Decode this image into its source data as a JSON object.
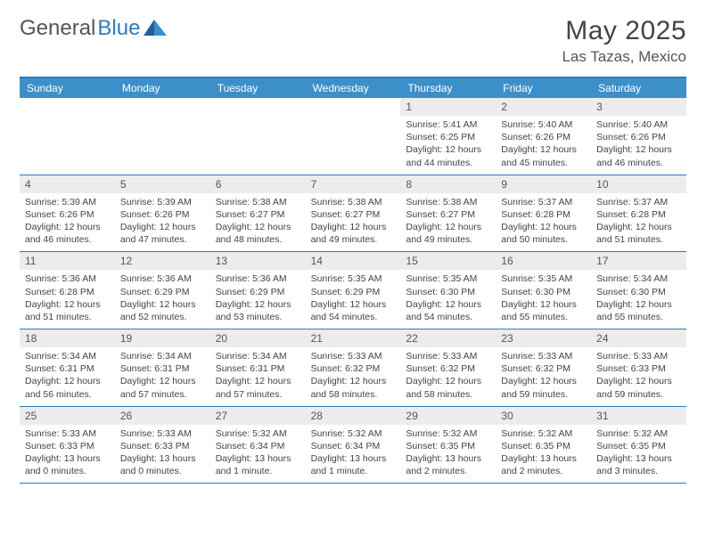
{
  "brand": {
    "part1": "General",
    "part2": "Blue"
  },
  "title": {
    "month": "May 2025",
    "location": "Las Tazas, Mexico"
  },
  "colors": {
    "header_bg": "#3d8fc9",
    "border": "#2b7bbf",
    "daynum_bg": "#ececec",
    "text": "#444444"
  },
  "day_labels": [
    "Sunday",
    "Monday",
    "Tuesday",
    "Wednesday",
    "Thursday",
    "Friday",
    "Saturday"
  ],
  "weeks": [
    [
      {
        "empty": true
      },
      {
        "empty": true
      },
      {
        "empty": true
      },
      {
        "empty": true
      },
      {
        "num": "1",
        "sunrise": "5:41 AM",
        "sunset": "6:25 PM",
        "daylight": "12 hours and 44 minutes."
      },
      {
        "num": "2",
        "sunrise": "5:40 AM",
        "sunset": "6:26 PM",
        "daylight": "12 hours and 45 minutes."
      },
      {
        "num": "3",
        "sunrise": "5:40 AM",
        "sunset": "6:26 PM",
        "daylight": "12 hours and 46 minutes."
      }
    ],
    [
      {
        "num": "4",
        "sunrise": "5:39 AM",
        "sunset": "6:26 PM",
        "daylight": "12 hours and 46 minutes."
      },
      {
        "num": "5",
        "sunrise": "5:39 AM",
        "sunset": "6:26 PM",
        "daylight": "12 hours and 47 minutes."
      },
      {
        "num": "6",
        "sunrise": "5:38 AM",
        "sunset": "6:27 PM",
        "daylight": "12 hours and 48 minutes."
      },
      {
        "num": "7",
        "sunrise": "5:38 AM",
        "sunset": "6:27 PM",
        "daylight": "12 hours and 49 minutes."
      },
      {
        "num": "8",
        "sunrise": "5:38 AM",
        "sunset": "6:27 PM",
        "daylight": "12 hours and 49 minutes."
      },
      {
        "num": "9",
        "sunrise": "5:37 AM",
        "sunset": "6:28 PM",
        "daylight": "12 hours and 50 minutes."
      },
      {
        "num": "10",
        "sunrise": "5:37 AM",
        "sunset": "6:28 PM",
        "daylight": "12 hours and 51 minutes."
      }
    ],
    [
      {
        "num": "11",
        "sunrise": "5:36 AM",
        "sunset": "6:28 PM",
        "daylight": "12 hours and 51 minutes."
      },
      {
        "num": "12",
        "sunrise": "5:36 AM",
        "sunset": "6:29 PM",
        "daylight": "12 hours and 52 minutes."
      },
      {
        "num": "13",
        "sunrise": "5:36 AM",
        "sunset": "6:29 PM",
        "daylight": "12 hours and 53 minutes."
      },
      {
        "num": "14",
        "sunrise": "5:35 AM",
        "sunset": "6:29 PM",
        "daylight": "12 hours and 54 minutes."
      },
      {
        "num": "15",
        "sunrise": "5:35 AM",
        "sunset": "6:30 PM",
        "daylight": "12 hours and 54 minutes."
      },
      {
        "num": "16",
        "sunrise": "5:35 AM",
        "sunset": "6:30 PM",
        "daylight": "12 hours and 55 minutes."
      },
      {
        "num": "17",
        "sunrise": "5:34 AM",
        "sunset": "6:30 PM",
        "daylight": "12 hours and 55 minutes."
      }
    ],
    [
      {
        "num": "18",
        "sunrise": "5:34 AM",
        "sunset": "6:31 PM",
        "daylight": "12 hours and 56 minutes."
      },
      {
        "num": "19",
        "sunrise": "5:34 AM",
        "sunset": "6:31 PM",
        "daylight": "12 hours and 57 minutes."
      },
      {
        "num": "20",
        "sunrise": "5:34 AM",
        "sunset": "6:31 PM",
        "daylight": "12 hours and 57 minutes."
      },
      {
        "num": "21",
        "sunrise": "5:33 AM",
        "sunset": "6:32 PM",
        "daylight": "12 hours and 58 minutes."
      },
      {
        "num": "22",
        "sunrise": "5:33 AM",
        "sunset": "6:32 PM",
        "daylight": "12 hours and 58 minutes."
      },
      {
        "num": "23",
        "sunrise": "5:33 AM",
        "sunset": "6:32 PM",
        "daylight": "12 hours and 59 minutes."
      },
      {
        "num": "24",
        "sunrise": "5:33 AM",
        "sunset": "6:33 PM",
        "daylight": "12 hours and 59 minutes."
      }
    ],
    [
      {
        "num": "25",
        "sunrise": "5:33 AM",
        "sunset": "6:33 PM",
        "daylight": "13 hours and 0 minutes."
      },
      {
        "num": "26",
        "sunrise": "5:33 AM",
        "sunset": "6:33 PM",
        "daylight": "13 hours and 0 minutes."
      },
      {
        "num": "27",
        "sunrise": "5:32 AM",
        "sunset": "6:34 PM",
        "daylight": "13 hours and 1 minute."
      },
      {
        "num": "28",
        "sunrise": "5:32 AM",
        "sunset": "6:34 PM",
        "daylight": "13 hours and 1 minute."
      },
      {
        "num": "29",
        "sunrise": "5:32 AM",
        "sunset": "6:35 PM",
        "daylight": "13 hours and 2 minutes."
      },
      {
        "num": "30",
        "sunrise": "5:32 AM",
        "sunset": "6:35 PM",
        "daylight": "13 hours and 2 minutes."
      },
      {
        "num": "31",
        "sunrise": "5:32 AM",
        "sunset": "6:35 PM",
        "daylight": "13 hours and 3 minutes."
      }
    ]
  ]
}
